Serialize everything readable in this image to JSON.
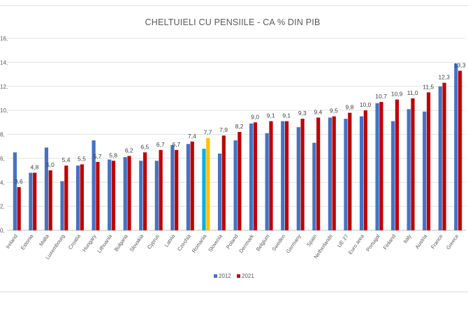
{
  "chart_data": {
    "type": "bar",
    "title": "CHELTUIELI CU PENSIILE - CA % DIN PIB",
    "xlabel": "",
    "ylabel": "",
    "ylim": [
      0,
      16
    ],
    "y_tick_labels": [
      "0,",
      "2,",
      "4,",
      "6,",
      "8,",
      "10,",
      "12,",
      "14,",
      "16,"
    ],
    "grid": true,
    "legend_position": "bottom-center",
    "categories": [
      "Ireland",
      "Estonia",
      "Malta",
      "Luxembourg",
      "Croatia",
      "Hungary",
      "Lithuania",
      "Bulgaria",
      "Slovakia",
      "Cyprus",
      "Latvia",
      "Czechia",
      "Romania",
      "Slovenia",
      "Poland",
      "Denmark",
      "Belgium",
      "Sweden",
      "Germany",
      "Spain",
      "Netherlands",
      "UE 27",
      "Euro area",
      "Portugal",
      "Finland",
      "Italy",
      "Austria",
      "France",
      "Greece"
    ],
    "highlight_category": "Romania",
    "series": [
      {
        "name": "2012",
        "color": "#4472C4",
        "highlight_color": "#00B0F0",
        "values": [
          6.5,
          4.8,
          6.9,
          4.1,
          5.4,
          7.5,
          5.9,
          6.1,
          5.8,
          5.8,
          7.1,
          7.2,
          6.8,
          6.4,
          7.5,
          8.9,
          8.1,
          9.1,
          8.6,
          7.3,
          9.4,
          9.3,
          9.5,
          10.6,
          9.1,
          10.1,
          9.9,
          12.0,
          13.9
        ]
      },
      {
        "name": "2021",
        "color": "#C00000",
        "highlight_color": "#FFC000",
        "values": [
          3.6,
          4.8,
          5.0,
          5.4,
          5.5,
          5.7,
          5.8,
          6.2,
          6.5,
          6.7,
          6.7,
          7.4,
          7.7,
          7.9,
          8.2,
          9.0,
          9.1,
          9.1,
          9.3,
          9.4,
          9.5,
          9.8,
          10.0,
          10.7,
          10.9,
          11.0,
          11.5,
          12.3,
          13.3
        ],
        "data_labels": [
          "3,6",
          "4,8",
          "5,0",
          "5,4",
          "5,5",
          "5,7",
          "5,8",
          "6,2",
          "6,5",
          "6,7",
          "6,7",
          "7,4",
          "7,7",
          "7,9",
          "8,2",
          "9,0",
          "9,1",
          "9,1",
          "9,3",
          "9,4",
          "9,5",
          "9,8",
          "10,0",
          "10,7",
          "10,9",
          "11,0",
          "11,5",
          "12,3",
          "13,3"
        ]
      }
    ]
  }
}
